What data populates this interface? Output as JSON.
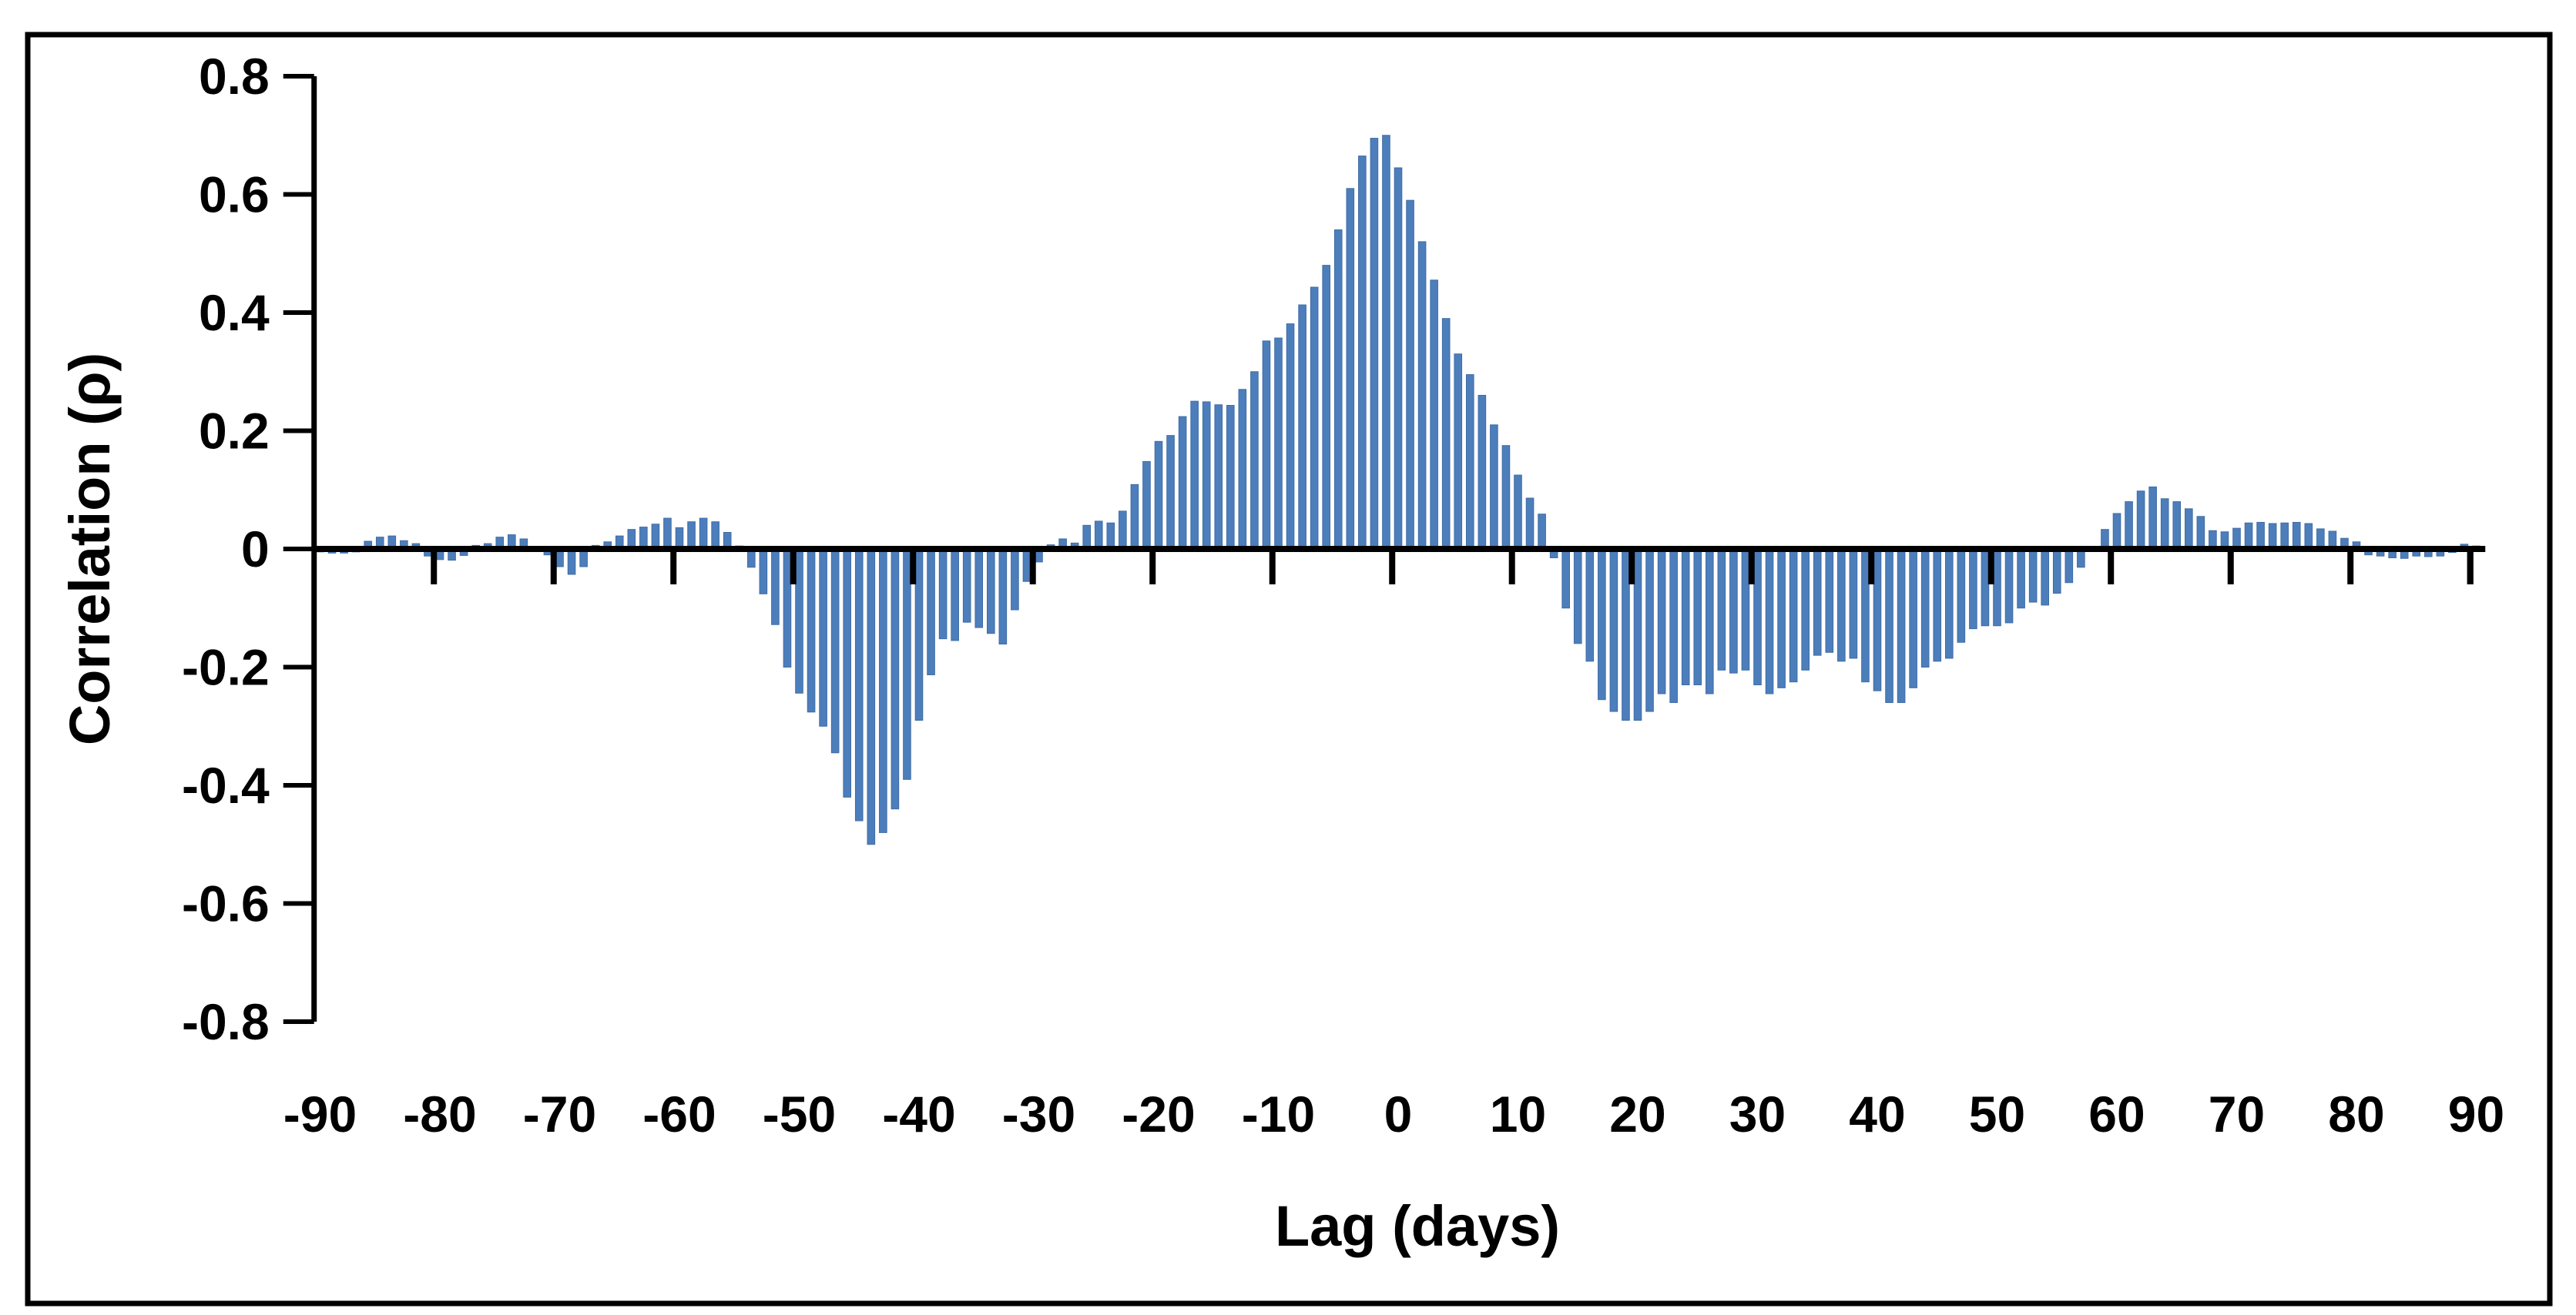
{
  "chart_data": {
    "type": "bar",
    "title": "",
    "xlabel": "Lag (days)",
    "ylabel": "Correlation (ρ)",
    "x_start": -90,
    "x_step": 1,
    "xlim": [
      -90.5,
      90.5
    ],
    "ylim": [
      -0.8,
      0.8
    ],
    "x_tick_interval": 10,
    "y_tick_interval": 0.2,
    "x_tick_labels": [
      "-90",
      "-80",
      "-70",
      "-60",
      "-50",
      "-40",
      "-30",
      "-20",
      "-10",
      "0",
      "10",
      "20",
      "30",
      "40",
      "50",
      "60",
      "70",
      "80",
      "90"
    ],
    "x_tick_values": [
      -90,
      -80,
      -70,
      -60,
      -50,
      -40,
      -30,
      -20,
      -10,
      0,
      10,
      20,
      30,
      40,
      50,
      60,
      70,
      80,
      90
    ],
    "y_tick_labels": [
      "0.8",
      "0.6",
      "0.4",
      "0.2",
      "0",
      "-0.2",
      "-0.4",
      "-0.6",
      "-0.8"
    ],
    "y_tick_values": [
      0.8,
      0.6,
      0.4,
      0.2,
      0,
      -0.2,
      -0.4,
      -0.6,
      -0.8
    ],
    "grid": false,
    "legend": null,
    "bar_color": "#4d7ebc",
    "bar_edge_color": "#3f6ca5",
    "axis_color": "#000000",
    "frame_color": "#000000",
    "background_color": "#ffffff",
    "values": [
      -0.005,
      -0.007,
      -0.007,
      -0.005,
      0.013,
      0.02,
      0.022,
      0.014,
      0.009,
      -0.012,
      -0.018,
      -0.019,
      -0.011,
      0.006,
      0.009,
      0.02,
      0.024,
      0.017,
      0.004,
      -0.01,
      -0.03,
      -0.043,
      -0.03,
      0.006,
      0.012,
      0.022,
      0.033,
      0.037,
      0.042,
      0.052,
      0.036,
      0.046,
      0.052,
      0.046,
      0.028,
      0.005,
      -0.031,
      -0.076,
      -0.128,
      -0.2,
      -0.244,
      -0.276,
      -0.3,
      -0.345,
      -0.42,
      -0.46,
      -0.5,
      -0.48,
      -0.44,
      -0.39,
      -0.29,
      -0.213,
      -0.152,
      -0.155,
      -0.124,
      -0.133,
      -0.143,
      -0.161,
      -0.103,
      -0.055,
      -0.022,
      0.007,
      0.017,
      0.01,
      0.04,
      0.047,
      0.044,
      0.064,
      0.109,
      0.148,
      0.182,
      0.192,
      0.224,
      0.25,
      0.249,
      0.244,
      0.243,
      0.27,
      0.3,
      0.352,
      0.357,
      0.381,
      0.413,
      0.443,
      0.48,
      0.54,
      0.61,
      0.665,
      0.695,
      0.7,
      0.645,
      0.59,
      0.52,
      0.455,
      0.39,
      0.33,
      0.295,
      0.26,
      0.21,
      0.175,
      0.125,
      0.086,
      0.059,
      -0.015,
      -0.1,
      -0.16,
      -0.19,
      -0.255,
      -0.275,
      -0.29,
      -0.29,
      -0.275,
      -0.245,
      -0.26,
      -0.23,
      -0.23,
      -0.245,
      -0.205,
      -0.21,
      -0.205,
      -0.23,
      -0.245,
      -0.235,
      -0.225,
      -0.205,
      -0.18,
      -0.175,
      -0.19,
      -0.185,
      -0.225,
      -0.24,
      -0.26,
      -0.26,
      -0.235,
      -0.2,
      -0.19,
      -0.185,
      -0.158,
      -0.135,
      -0.13,
      -0.13,
      -0.125,
      -0.1,
      -0.09,
      -0.095,
      -0.075,
      -0.057,
      -0.031,
      0.002,
      0.033,
      0.06,
      0.08,
      0.098,
      0.105,
      0.085,
      0.08,
      0.068,
      0.055,
      0.031,
      0.029,
      0.035,
      0.044,
      0.045,
      0.043,
      0.044,
      0.045,
      0.043,
      0.034,
      0.03,
      0.018,
      0.012,
      -0.01,
      -0.012,
      -0.015,
      -0.016,
      -0.012,
      -0.013,
      -0.012,
      -0.006,
      0.008,
      0.005
    ]
  }
}
